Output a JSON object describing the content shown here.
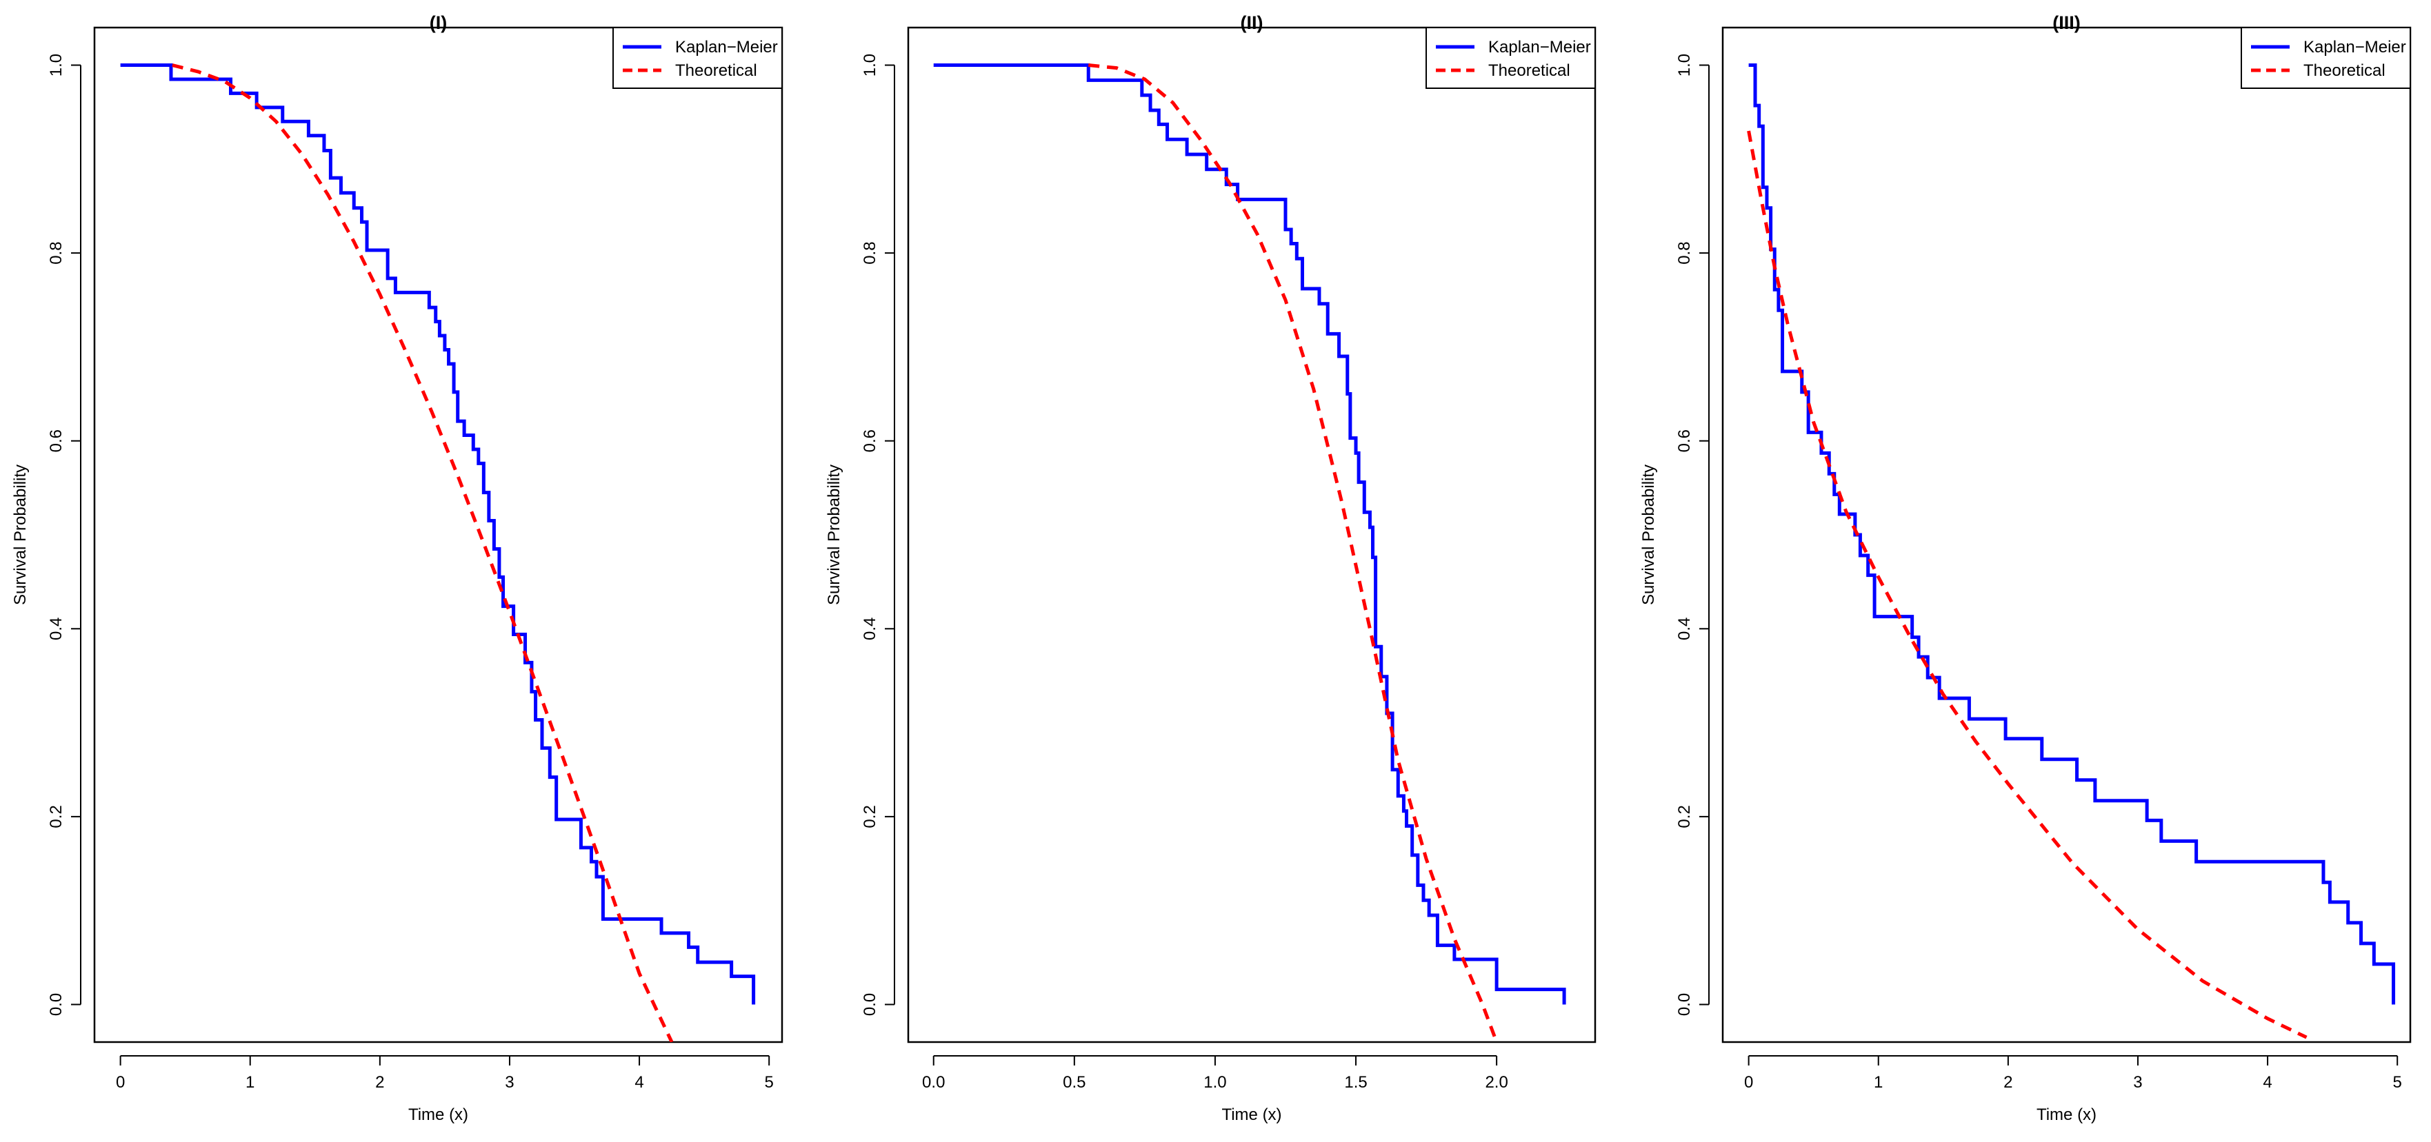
{
  "colors": {
    "km": "#0000ff",
    "theoretical": "#ff0000",
    "axis": "#000000",
    "background": "#ffffff"
  },
  "chart_data": [
    {
      "type": "line",
      "title": "(I)",
      "xlabel": "Time (x)",
      "ylabel": "Survival Probability",
      "xlim": [
        -0.2,
        5.1
      ],
      "ylim": [
        -0.04,
        1.04
      ],
      "xticks": [
        0,
        1,
        2,
        3,
        4,
        5
      ],
      "xtick_labels": [
        "0",
        "1",
        "2",
        "3",
        "4",
        "5"
      ],
      "yticks": [
        0.0,
        0.2,
        0.4,
        0.6,
        0.8,
        1.0
      ],
      "ytick_labels": [
        "0.0",
        "0.2",
        "0.4",
        "0.6",
        "0.8",
        "1.0"
      ],
      "legend": {
        "position": "top-right",
        "entries": [
          "Kaplan−Meier",
          "Theoretical"
        ]
      },
      "series": [
        {
          "name": "Kaplan−Meier",
          "style": "step",
          "x": [
            0,
            0.39,
            0.85,
            1.05,
            1.25,
            1.45,
            1.57,
            1.62,
            1.7,
            1.8,
            1.86,
            1.9,
            2.06,
            2.12,
            2.38,
            2.43,
            2.46,
            2.5,
            2.53,
            2.57,
            2.6,
            2.65,
            2.72,
            2.76,
            2.8,
            2.84,
            2.88,
            2.92,
            2.95,
            3.03,
            3.12,
            3.17,
            3.2,
            3.25,
            3.31,
            3.36,
            3.55,
            3.63,
            3.67,
            3.72,
            4.17,
            4.38,
            4.45,
            4.71,
            4.88
          ],
          "y": [
            1.0,
            0.985,
            0.97,
            0.955,
            0.94,
            0.925,
            0.909,
            0.88,
            0.864,
            0.848,
            0.833,
            0.803,
            0.773,
            0.758,
            0.742,
            0.727,
            0.712,
            0.697,
            0.682,
            0.652,
            0.621,
            0.606,
            0.591,
            0.576,
            0.545,
            0.515,
            0.485,
            0.455,
            0.424,
            0.394,
            0.364,
            0.333,
            0.303,
            0.273,
            0.242,
            0.197,
            0.167,
            0.152,
            0.136,
            0.091,
            0.076,
            0.061,
            0.045,
            0.03,
            0.015
          ],
          "end": [
            4.88,
            0.0
          ]
        },
        {
          "name": "Theoretical",
          "style": "dashed",
          "x": [
            0.4,
            0.6,
            0.8,
            1.0,
            1.2,
            1.4,
            1.6,
            1.8,
            2.0,
            2.2,
            2.4,
            2.6,
            2.8,
            3.0,
            3.2,
            3.4,
            3.6,
            3.8,
            4.0,
            4.25
          ],
          "y": [
            1.0,
            0.993,
            0.983,
            0.965,
            0.94,
            0.905,
            0.862,
            0.812,
            0.756,
            0.695,
            0.631,
            0.563,
            0.491,
            0.418,
            0.343,
            0.267,
            0.19,
            0.112,
            0.033,
            -0.04
          ]
        }
      ]
    },
    {
      "type": "line",
      "title": "(II)",
      "xlabel": "Time (x)",
      "ylabel": "Survival Probability",
      "xlim": [
        -0.09,
        2.35
      ],
      "ylim": [
        -0.04,
        1.04
      ],
      "xticks": [
        0.0,
        0.5,
        1.0,
        1.5,
        2.0
      ],
      "xtick_labels": [
        "0.0",
        "0.5",
        "1.0",
        "1.5",
        "2.0"
      ],
      "yticks": [
        0.0,
        0.2,
        0.4,
        0.6,
        0.8,
        1.0
      ],
      "ytick_labels": [
        "0.0",
        "0.2",
        "0.4",
        "0.6",
        "0.8",
        "1.0"
      ],
      "legend": {
        "position": "top-right",
        "entries": [
          "Kaplan−Meier",
          "Theoretical"
        ]
      },
      "series": [
        {
          "name": "Kaplan−Meier",
          "style": "step",
          "x": [
            0,
            0.55,
            0.74,
            0.77,
            0.8,
            0.83,
            0.9,
            0.97,
            1.04,
            1.08,
            1.12,
            1.25,
            1.27,
            1.29,
            1.31,
            1.37,
            1.4,
            1.44,
            1.47,
            1.48,
            1.5,
            1.51,
            1.53,
            1.55,
            1.56,
            1.57,
            1.59,
            1.61,
            1.63,
            1.65,
            1.67,
            1.68,
            1.7,
            1.72,
            1.74,
            1.76,
            1.79,
            1.85,
            1.9,
            2.0,
            2.24
          ],
          "y": [
            1.0,
            0.984,
            0.968,
            0.952,
            0.937,
            0.921,
            0.905,
            0.889,
            0.873,
            0.857,
            0.857,
            0.825,
            0.81,
            0.794,
            0.762,
            0.746,
            0.714,
            0.69,
            0.65,
            0.603,
            0.587,
            0.556,
            0.524,
            0.508,
            0.476,
            0.381,
            0.349,
            0.31,
            0.25,
            0.222,
            0.206,
            0.19,
            0.159,
            0.127,
            0.111,
            0.095,
            0.063,
            0.048,
            0.048,
            0.016,
            0.016
          ],
          "end": [
            2.24,
            0.0
          ]
        },
        {
          "name": "Theoretical",
          "style": "dashed",
          "x": [
            0.55,
            0.65,
            0.75,
            0.85,
            0.95,
            1.05,
            1.15,
            1.25,
            1.35,
            1.45,
            1.55,
            1.65,
            1.75,
            1.85,
            1.95,
            2.0
          ],
          "y": [
            1.0,
            0.997,
            0.985,
            0.96,
            0.92,
            0.875,
            0.82,
            0.75,
            0.655,
            0.535,
            0.4,
            0.26,
            0.155,
            0.07,
            0.0,
            -0.04
          ]
        }
      ]
    },
    {
      "type": "line",
      "title": "(III)",
      "xlabel": "Time (x)",
      "ylabel": "Survival Probability",
      "xlim": [
        -0.2,
        5.1
      ],
      "ylim": [
        -0.04,
        1.04
      ],
      "xticks": [
        0,
        1,
        2,
        3,
        4,
        5
      ],
      "xtick_labels": [
        "0",
        "1",
        "2",
        "3",
        "4",
        "5"
      ],
      "yticks": [
        0.0,
        0.2,
        0.4,
        0.6,
        0.8,
        1.0
      ],
      "ytick_labels": [
        "0.0",
        "0.2",
        "0.4",
        "0.6",
        "0.8",
        "1.0"
      ],
      "legend": {
        "position": "top-right",
        "entries": [
          "Kaplan−Meier",
          "Theoretical"
        ]
      },
      "series": [
        {
          "name": "Kaplan−Meier",
          "style": "step",
          "x": [
            0,
            0.05,
            0.08,
            0.11,
            0.14,
            0.17,
            0.2,
            0.23,
            0.26,
            0.33,
            0.41,
            0.46,
            0.56,
            0.62,
            0.66,
            0.7,
            0.82,
            0.86,
            0.92,
            0.97,
            1.26,
            1.31,
            1.38,
            1.47,
            1.7,
            1.98,
            2.26,
            2.53,
            2.67,
            3.07,
            3.18,
            3.45,
            4.43,
            4.48,
            4.62,
            4.72,
            4.82,
            4.97
          ],
          "y": [
            1.0,
            0.957,
            0.935,
            0.87,
            0.848,
            0.804,
            0.761,
            0.739,
            0.674,
            0.674,
            0.652,
            0.609,
            0.587,
            0.565,
            0.543,
            0.522,
            0.5,
            0.478,
            0.457,
            0.413,
            0.391,
            0.37,
            0.348,
            0.326,
            0.304,
            0.283,
            0.261,
            0.239,
            0.217,
            0.196,
            0.174,
            0.152,
            0.13,
            0.109,
            0.087,
            0.065,
            0.043,
            0.022
          ],
          "end": [
            4.97,
            0.0
          ]
        },
        {
          "name": "Theoretical",
          "style": "dashed",
          "x": [
            0.0,
            0.1,
            0.2,
            0.3,
            0.5,
            0.75,
            1.0,
            1.25,
            1.5,
            1.75,
            2.0,
            2.5,
            3.0,
            3.5,
            4.0,
            4.3
          ],
          "y": [
            0.93,
            0.855,
            0.785,
            0.725,
            0.62,
            0.525,
            0.455,
            0.39,
            0.33,
            0.28,
            0.235,
            0.15,
            0.08,
            0.025,
            -0.015,
            -0.035
          ]
        }
      ]
    }
  ]
}
